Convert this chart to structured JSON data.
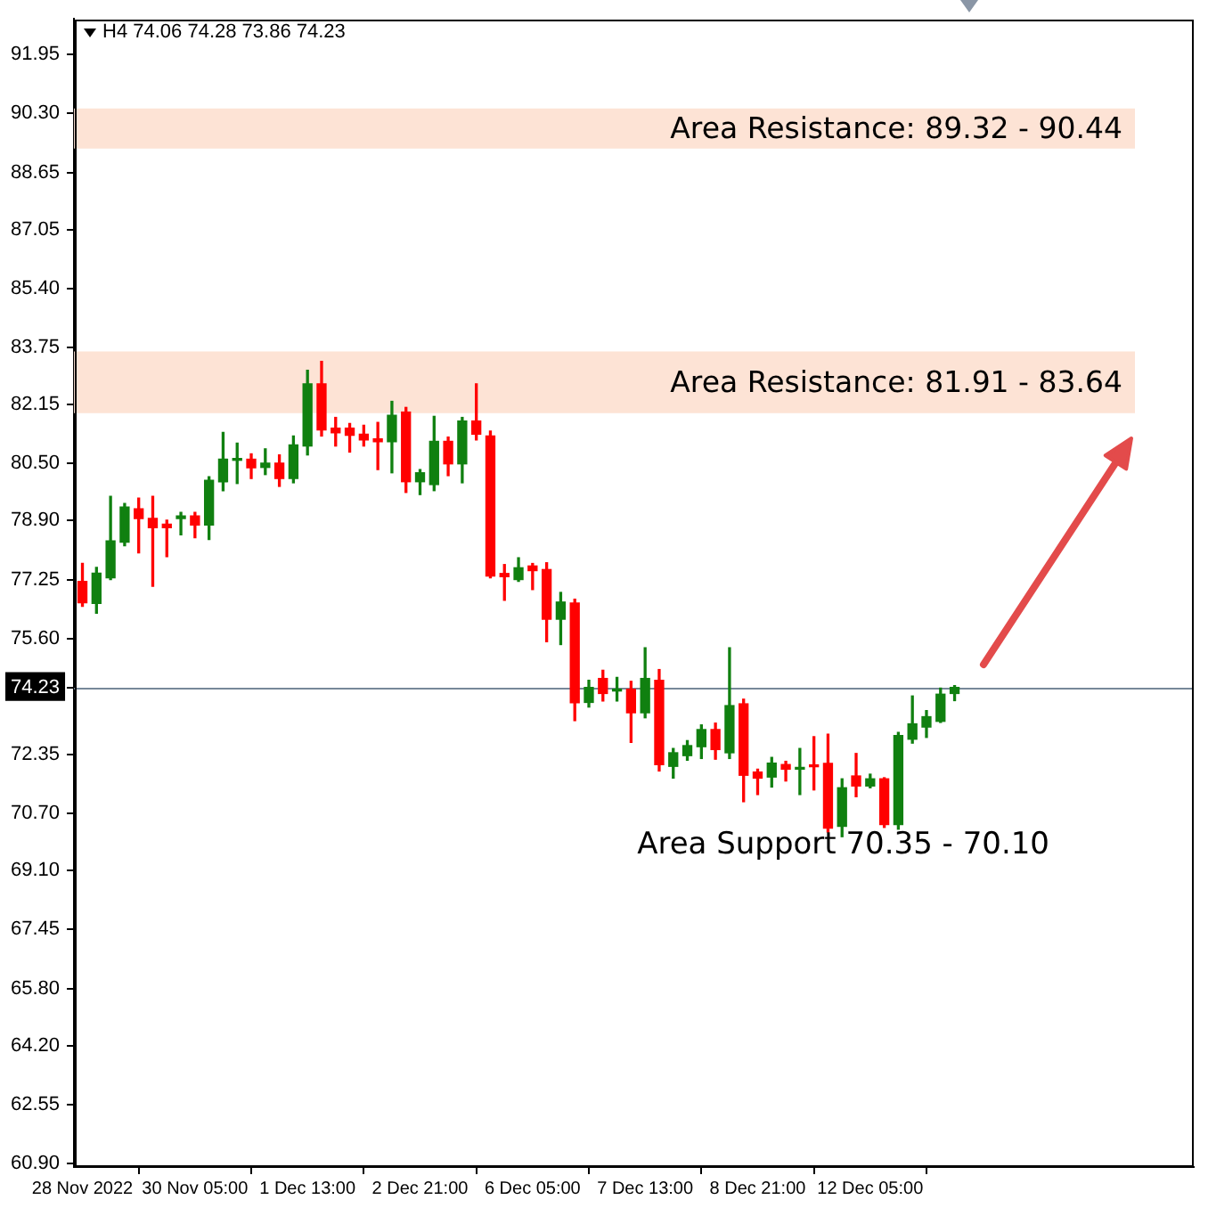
{
  "chart_data": {
    "type": "candlestick",
    "title": "H4 74.06 74.28 73.86 74.23",
    "categories": [
      "28 Nov 2022",
      null,
      null,
      null,
      null,
      null,
      null,
      null,
      "30 Nov 05:00",
      null,
      null,
      null,
      null,
      null,
      null,
      null,
      "1 Dec 13:00",
      null,
      null,
      null,
      null,
      null,
      null,
      null,
      "2 Dec 21:00",
      null,
      null,
      null,
      null,
      null,
      null,
      null,
      "6 Dec 05:00",
      null,
      null,
      null,
      null,
      null,
      null,
      null,
      "7 Dec 13:00",
      null,
      null,
      null,
      null,
      null,
      null,
      null,
      "8 Dec 21:00",
      null,
      null,
      null,
      null,
      null,
      null,
      null,
      "12 Dec 05:00",
      null,
      null,
      null,
      null,
      null,
      null
    ],
    "ohlc": [
      [
        77.2,
        77.7,
        76.5,
        76.6
      ],
      [
        76.58,
        77.59,
        76.31,
        77.43
      ],
      [
        77.3,
        79.58,
        77.25,
        78.33
      ],
      [
        78.3,
        79.38,
        78.2,
        79.28
      ],
      [
        79.23,
        79.53,
        78.0,
        78.96
      ],
      [
        78.96,
        79.58,
        77.06,
        78.7
      ],
      [
        78.8,
        78.91,
        77.89,
        78.7
      ],
      [
        78.96,
        79.13,
        78.5,
        79.03
      ],
      [
        79.03,
        79.13,
        78.42,
        78.78
      ],
      [
        78.78,
        80.13,
        78.37,
        80.03
      ],
      [
        79.99,
        81.37,
        79.74,
        80.62
      ],
      [
        80.59,
        81.07,
        79.94,
        80.64
      ],
      [
        80.62,
        80.77,
        80.08,
        80.38
      ],
      [
        80.39,
        80.91,
        80.19,
        80.51
      ],
      [
        80.51,
        80.74,
        79.86,
        80.08
      ],
      [
        80.08,
        81.27,
        79.96,
        81.02
      ],
      [
        80.99,
        83.11,
        80.74,
        82.73
      ],
      [
        82.73,
        83.36,
        81.27,
        81.44
      ],
      [
        81.49,
        81.79,
        80.99,
        81.36
      ],
      [
        81.49,
        81.62,
        80.82,
        81.29
      ],
      [
        81.32,
        81.57,
        80.99,
        81.16
      ],
      [
        81.19,
        81.65,
        80.33,
        81.11
      ],
      [
        81.11,
        82.24,
        80.24,
        81.85
      ],
      [
        81.94,
        82.07,
        79.69,
        79.99
      ],
      [
        79.99,
        80.33,
        79.63,
        80.24
      ],
      [
        79.91,
        81.82,
        79.74,
        81.12
      ],
      [
        81.12,
        81.24,
        80.16,
        80.49
      ],
      [
        80.49,
        81.79,
        79.96,
        81.69
      ],
      [
        81.69,
        82.73,
        81.16,
        81.32
      ],
      [
        81.27,
        81.41,
        77.3,
        77.35
      ],
      [
        77.42,
        77.67,
        76.67,
        77.33
      ],
      [
        77.25,
        77.86,
        77.2,
        77.58
      ],
      [
        77.63,
        77.7,
        76.97,
        77.5
      ],
      [
        77.53,
        77.72,
        75.51,
        76.14
      ],
      [
        76.14,
        76.89,
        75.43,
        76.62
      ],
      [
        76.59,
        76.7,
        73.3,
        73.8
      ],
      [
        73.81,
        74.43,
        73.68,
        74.23
      ],
      [
        74.48,
        74.71,
        73.85,
        74.06
      ],
      [
        74.13,
        74.51,
        73.85,
        74.18
      ],
      [
        74.18,
        74.4,
        72.69,
        73.52
      ],
      [
        73.52,
        75.34,
        73.38,
        74.48
      ],
      [
        74.43,
        74.73,
        71.89,
        72.07
      ],
      [
        72.02,
        72.52,
        71.69,
        72.4
      ],
      [
        72.32,
        72.74,
        72.19,
        72.6
      ],
      [
        72.57,
        73.18,
        72.24,
        73.05
      ],
      [
        73.05,
        73.23,
        72.22,
        72.49
      ],
      [
        72.4,
        75.34,
        72.24,
        73.72
      ],
      [
        73.77,
        73.9,
        71.03,
        71.77
      ],
      [
        71.86,
        71.94,
        71.23,
        71.69
      ],
      [
        71.72,
        72.27,
        71.44,
        72.11
      ],
      [
        72.07,
        72.16,
        71.61,
        71.94
      ],
      [
        71.94,
        72.52,
        71.23,
        71.99
      ],
      [
        72.06,
        72.85,
        71.36,
        72.01
      ],
      [
        72.1,
        72.92,
        70.18,
        70.29
      ],
      [
        70.34,
        71.67,
        70.05,
        71.42
      ],
      [
        71.75,
        72.38,
        71.17,
        71.47
      ],
      [
        71.47,
        71.8,
        71.42,
        71.67
      ],
      [
        71.67,
        71.7,
        70.31,
        70.39
      ],
      [
        70.39,
        72.97,
        70.26,
        72.88
      ],
      [
        72.78,
        73.99,
        72.67,
        73.21
      ],
      [
        73.12,
        73.58,
        72.83,
        73.41
      ],
      [
        73.28,
        74.21,
        73.25,
        74.04
      ],
      [
        74.06,
        74.28,
        73.86,
        74.23
      ]
    ],
    "colors": [
      "#ff0000",
      "#108010",
      "#108010",
      "#108010",
      "#ff0000",
      "#ff0000",
      "#ff0000",
      "#108010",
      "#ff0000",
      "#108010",
      "#108010",
      "#108010",
      "#ff0000",
      "#108010",
      "#ff0000",
      "#108010",
      "#108010",
      "#ff0000",
      "#ff0000",
      "#ff0000",
      "#ff0000",
      "#ff0000",
      "#108010",
      "#ff0000",
      "#108010",
      "#108010",
      "#ff0000",
      "#108010",
      "#ff0000",
      "#ff0000",
      "#ff0000",
      "#108010",
      "#ff0000",
      "#ff0000",
      "#108010",
      "#ff0000",
      "#108010",
      "#ff0000",
      "#108010",
      "#ff0000",
      "#108010",
      "#ff0000",
      "#108010",
      "#108010",
      "#108010",
      "#ff0000",
      "#108010",
      "#ff0000",
      "#ff0000",
      "#108010",
      "#ff0000",
      "#108010",
      "#ff0000",
      "#ff0000",
      "#108010",
      "#ff0000",
      "#108010",
      "#ff0000",
      "#108010",
      "#108010",
      "#108010",
      "#108010",
      "#108010"
    ],
    "ylim": [
      60.8,
      92.95
    ],
    "yticks": [
      {
        "value": 60.9,
        "label": "60.90"
      },
      {
        "value": 62.55,
        "label": "62.55"
      },
      {
        "value": 64.2,
        "label": "64.20"
      },
      {
        "value": 65.8,
        "label": "65.80"
      },
      {
        "value": 67.45,
        "label": "67.45"
      },
      {
        "value": 69.1,
        "label": "69.10"
      },
      {
        "value": 70.7,
        "label": "70.70"
      },
      {
        "value": 72.35,
        "label": "72.35"
      },
      {
        "value": 74.23,
        "label": "74.23"
      },
      {
        "value": 75.6,
        "label": "75.60"
      },
      {
        "value": 77.25,
        "label": "77.25"
      },
      {
        "value": 78.9,
        "label": "78.90"
      },
      {
        "value": 80.5,
        "label": "80.50"
      },
      {
        "value": 82.15,
        "label": "82.15"
      },
      {
        "value": 83.75,
        "label": "83.75"
      },
      {
        "value": 85.4,
        "label": "85.40"
      },
      {
        "value": 87.05,
        "label": "87.05"
      },
      {
        "value": 88.65,
        "label": "88.65"
      },
      {
        "value": 90.3,
        "label": "90.30"
      },
      {
        "value": 91.95,
        "label": "91.95"
      }
    ],
    "ref_lines": [
      {
        "axis": "y",
        "value": 74.23,
        "color": "#778899"
      }
    ],
    "bands": [
      {
        "axis": "y",
        "from": 89.32,
        "to": 90.44,
        "label": "Area Resistance: 89.32 - 90.44",
        "color": "#fde3d5"
      },
      {
        "axis": "y",
        "from": 81.91,
        "to": 83.64,
        "label": "Area Resistance: 81.91 - 83.64",
        "color": "#fde3d5"
      }
    ],
    "annotations": [
      "Area Support 70.35 - 70.10"
    ]
  }
}
